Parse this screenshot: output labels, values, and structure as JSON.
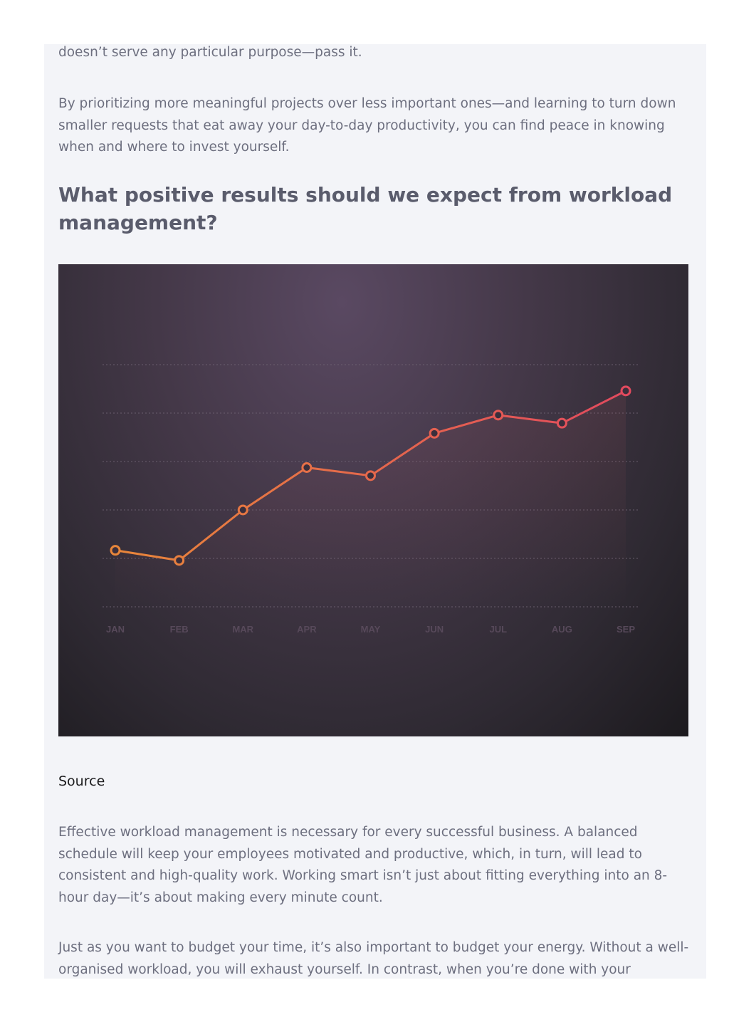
{
  "article": {
    "para_top": "doesn’t serve any particular purpose—pass it.",
    "para_prioritizing": "By prioritizing more meaningful projects over less important ones—and learning to turn down smaller requests that eat away your day-to-day productivity, you can find peace in knowing when and where to invest yourself.",
    "heading": "What positive results should we expect from workload management?",
    "source_label": "Source",
    "para_effective": "Effective workload management is necessary for every successful business. A balanced schedule will keep your employees motivated and productive, which, in turn, will lead to consistent and high-quality work. Working smart isn’t just about fitting everything into an 8-hour day—it’s about making every minute count.",
    "para_budget": "Just as you want to budget your time, it’s also important to budget your energy. Without a well-organised workload, you will exhaust yourself. In contrast, when you’re done with your workload"
  },
  "chart_data": {
    "type": "line",
    "categories": [
      "JAN",
      "FEB",
      "MAR",
      "APR",
      "MAY",
      "JUN",
      "JUL",
      "AUG",
      "SEP"
    ],
    "values": [
      1.4,
      1.15,
      2.4,
      3.45,
      3.25,
      4.3,
      4.75,
      4.55,
      5.35
    ],
    "ylim": [
      0,
      6
    ],
    "grid": true,
    "line_colors": [
      "#e8863a",
      "#e24a5e"
    ],
    "background_colors": [
      "#5a4962",
      "#1c1a1e"
    ]
  }
}
